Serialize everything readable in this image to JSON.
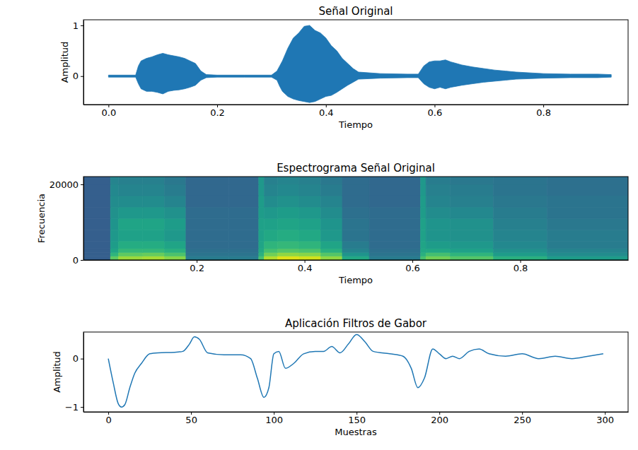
{
  "chart_data": [
    {
      "type": "area",
      "title": "Señal Original",
      "xlabel": "Tiempo",
      "ylabel": "Amplitud",
      "x": [
        0,
        0.05,
        0.055,
        0.06,
        0.07,
        0.08,
        0.09,
        0.1,
        0.11,
        0.12,
        0.13,
        0.14,
        0.15,
        0.16,
        0.17,
        0.18,
        0.2,
        0.25,
        0.3,
        0.31,
        0.315,
        0.32,
        0.33,
        0.34,
        0.35,
        0.36,
        0.37,
        0.38,
        0.39,
        0.4,
        0.41,
        0.42,
        0.43,
        0.44,
        0.45,
        0.46,
        0.5,
        0.55,
        0.57,
        0.58,
        0.59,
        0.6,
        0.61,
        0.62,
        0.63,
        0.64,
        0.65,
        0.67,
        0.69,
        0.71,
        0.73,
        0.75,
        0.8,
        0.85,
        0.9,
        0.925
      ],
      "series": [
        {
          "color": "#1f77b4",
          "values": [
            0.02,
            0.02,
            0.2,
            0.3,
            0.35,
            0.38,
            0.42,
            0.45,
            0.42,
            0.4,
            0.38,
            0.35,
            0.3,
            0.25,
            0.1,
            0.03,
            0.02,
            0.02,
            0.02,
            0.1,
            0.2,
            0.3,
            0.55,
            0.75,
            0.85,
            0.98,
            1.0,
            0.9,
            0.85,
            0.75,
            0.6,
            0.5,
            0.35,
            0.25,
            0.15,
            0.08,
            0.05,
            0.04,
            0.04,
            0.2,
            0.28,
            0.3,
            0.3,
            0.32,
            0.28,
            0.25,
            0.22,
            0.18,
            0.15,
            0.12,
            0.1,
            0.08,
            0.05,
            0.04,
            0.04,
            0.03
          ]
        },
        {
          "color": "#1f77b4",
          "values": [
            -0.02,
            -0.02,
            -0.15,
            -0.25,
            -0.3,
            -0.3,
            -0.32,
            -0.35,
            -0.3,
            -0.28,
            -0.27,
            -0.25,
            -0.22,
            -0.18,
            -0.08,
            -0.03,
            -0.02,
            -0.02,
            -0.02,
            -0.08,
            -0.2,
            -0.3,
            -0.4,
            -0.45,
            -0.48,
            -0.5,
            -0.52,
            -0.5,
            -0.45,
            -0.4,
            -0.38,
            -0.32,
            -0.25,
            -0.18,
            -0.12,
            -0.06,
            -0.04,
            -0.03,
            -0.03,
            -0.15,
            -0.22,
            -0.25,
            -0.22,
            -0.25,
            -0.22,
            -0.2,
            -0.18,
            -0.15,
            -0.12,
            -0.1,
            -0.08,
            -0.06,
            -0.04,
            -0.03,
            -0.03,
            -0.02
          ]
        }
      ],
      "xlim": [
        -0.046,
        0.956
      ],
      "ylim": [
        -0.56,
        1.11
      ],
      "xticks": [
        {
          "value": 0,
          "label": "0.0"
        },
        0.2,
        0.4,
        0.6,
        0.8
      ],
      "yticks": [
        0,
        1
      ]
    },
    {
      "type": "heatmap",
      "title": "Espectrograma Señal Original",
      "xlabel": "Tiempo",
      "ylabel": "Frecuencia",
      "color": "viridis",
      "x_bins": [
        -0.01,
        0.04,
        0.055,
        0.1,
        0.14,
        0.18,
        0.26,
        0.315,
        0.325,
        0.35,
        0.39,
        0.43,
        0.47,
        0.52,
        0.615,
        0.625,
        0.67,
        0.75,
        0.85,
        1.0
      ],
      "y_bins": [
        0,
        1000,
        2000,
        3000,
        5000,
        8000,
        11000,
        14000,
        17000,
        20000,
        22050
      ],
      "cells": [
        [
          -114,
          -60,
          -48,
          -46,
          -52,
          -100,
          -100,
          -66,
          -44,
          -36,
          -38,
          -50,
          -78,
          -100,
          -66,
          -56,
          -62,
          -74,
          -84
        ],
        [
          -114,
          -72,
          -60,
          -58,
          -64,
          -104,
          -104,
          -74,
          -56,
          -50,
          -52,
          -62,
          -88,
          -104,
          -74,
          -66,
          -72,
          -84,
          -92
        ],
        [
          -114,
          -80,
          -70,
          -70,
          -74,
          -106,
          -106,
          -78,
          -66,
          -62,
          -64,
          -74,
          -96,
          -106,
          -78,
          -78,
          -82,
          -90,
          -96
        ],
        [
          -114,
          -84,
          -76,
          -76,
          -80,
          -108,
          -108,
          -80,
          -72,
          -70,
          -72,
          -80,
          -100,
          -108,
          -80,
          -84,
          -86,
          -94,
          -100
        ],
        [
          -114,
          -86,
          -82,
          -82,
          -86,
          -108,
          -108,
          -82,
          -78,
          -76,
          -78,
          -86,
          -104,
          -108,
          -82,
          -88,
          -90,
          -96,
          -100
        ],
        [
          -114,
          -88,
          -80,
          -80,
          -84,
          -108,
          -108,
          -82,
          -82,
          -80,
          -82,
          -88,
          -104,
          -108,
          -82,
          -88,
          -90,
          -98,
          -102
        ],
        [
          -114,
          -90,
          -86,
          -86,
          -90,
          -108,
          -108,
          -84,
          -86,
          -84,
          -86,
          -92,
          -106,
          -108,
          -84,
          -92,
          -94,
          -100,
          -104
        ],
        [
          -114,
          -92,
          -92,
          -92,
          -96,
          -110,
          -110,
          -84,
          -92,
          -90,
          -92,
          -96,
          -108,
          -110,
          -84,
          -96,
          -98,
          -102,
          -104
        ],
        [
          -114,
          -94,
          -96,
          -96,
          -100,
          -110,
          -110,
          -86,
          -96,
          -94,
          -96,
          -100,
          -108,
          -110,
          -86,
          -98,
          -100,
          -104,
          -106
        ],
        [
          -114,
          -96,
          -98,
          -98,
          -102,
          -110,
          -110,
          -86,
          -98,
          -96,
          -98,
          -102,
          -108,
          -110,
          -86,
          -100,
          -102,
          -104,
          -106
        ]
      ],
      "color_range": [
        -150,
        -30
      ],
      "xlim": [
        -0.01,
        1.0
      ],
      "ylim": [
        0,
        22050
      ],
      "xticks": [
        0.2,
        0.4,
        0.6,
        0.8
      ],
      "yticks": [
        0,
        20000
      ]
    },
    {
      "type": "line",
      "title": "Aplicación Filtros de Gabor",
      "xlabel": "Muestras",
      "ylabel": "Amplitud",
      "x": [
        0,
        3,
        6,
        8,
        10,
        13,
        16,
        20,
        25,
        30,
        40,
        45,
        49,
        52,
        55,
        60,
        70,
        80,
        86,
        90,
        94,
        97,
        100,
        103,
        107,
        112,
        118,
        125,
        130,
        135,
        140,
        145,
        150,
        155,
        160,
        170,
        178,
        183,
        187,
        191,
        196,
        200,
        204,
        208,
        212,
        218,
        224,
        230,
        240,
        250,
        260,
        270,
        280,
        290,
        299
      ],
      "series": [
        {
          "color": "#1f77b4",
          "values": [
            0,
            -0.5,
            -0.93,
            -1.0,
            -0.95,
            -0.6,
            -0.3,
            -0.1,
            0.1,
            0.12,
            0.13,
            0.15,
            0.3,
            0.45,
            0.4,
            0.12,
            0.08,
            0.08,
            0.0,
            -0.4,
            -0.8,
            -0.6,
            0.1,
            0.15,
            -0.2,
            -0.1,
            0.1,
            0.15,
            0.15,
            0.25,
            0.12,
            0.3,
            0.5,
            0.35,
            0.15,
            0.1,
            0.05,
            -0.2,
            -0.6,
            -0.4,
            0.2,
            0.1,
            0.0,
            0.05,
            0.0,
            0.15,
            0.2,
            0.1,
            0.05,
            0.1,
            0.0,
            0.05,
            0.0,
            0.05,
            0.1
          ]
        }
      ],
      "xlim": [
        -15,
        314
      ],
      "ylim": [
        -1.1,
        0.55
      ],
      "xticks": [
        0,
        50,
        100,
        150,
        200,
        250,
        300
      ],
      "yticks": [
        {
          "value": -1,
          "label": "−1"
        },
        0
      ]
    }
  ]
}
